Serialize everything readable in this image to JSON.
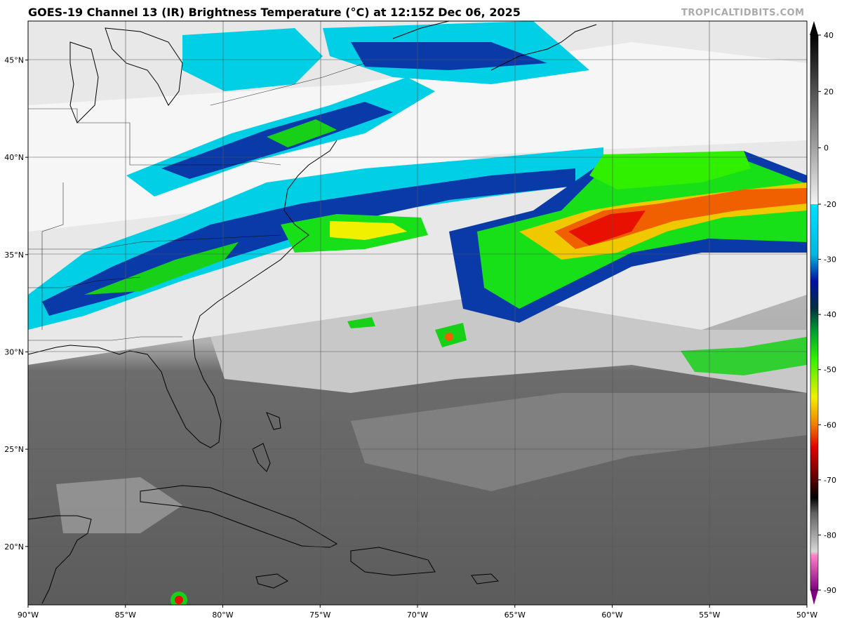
{
  "title": "GOES-19 Channel 13 (IR) Brightness Temperature (°C) at 12:15Z Dec 06, 2025",
  "credit": "TROPICALTIDBITS.COM",
  "map": {
    "lon_range": [
      -90,
      -50
    ],
    "lat_range": [
      17,
      47
    ],
    "lon_ticks": [
      {
        "value": -90,
        "label": "90°W"
      },
      {
        "value": -85,
        "label": "85°W"
      },
      {
        "value": -80,
        "label": "80°W"
      },
      {
        "value": -75,
        "label": "75°W"
      },
      {
        "value": -70,
        "label": "70°W"
      },
      {
        "value": -65,
        "label": "65°W"
      },
      {
        "value": -60,
        "label": "60°W"
      },
      {
        "value": -55,
        "label": "55°W"
      },
      {
        "value": -50,
        "label": "50°W"
      }
    ],
    "lat_ticks": [
      {
        "value": 20,
        "label": "20°N"
      },
      {
        "value": 25,
        "label": "25°N"
      },
      {
        "value": 30,
        "label": "30°N"
      },
      {
        "value": 35,
        "label": "35°N"
      },
      {
        "value": 40,
        "label": "40°N"
      },
      {
        "value": 45,
        "label": "45°N"
      }
    ]
  },
  "colorbar": {
    "range": [
      -90,
      40
    ],
    "labels": [
      "40",
      "20",
      "0",
      "-20",
      "-30",
      "-40",
      "-50",
      "-60",
      "-70",
      "-80",
      "-90"
    ]
  },
  "colors": {
    "ocean_gray": "#5f5f5f",
    "land_gray": "#6a6a6a",
    "cloud_white": "#f2f2f2",
    "cyan": "#00d8ec",
    "blue": "#0a3aa8",
    "green": "#18e018",
    "yellow": "#f0f000",
    "red": "#f01000"
  }
}
